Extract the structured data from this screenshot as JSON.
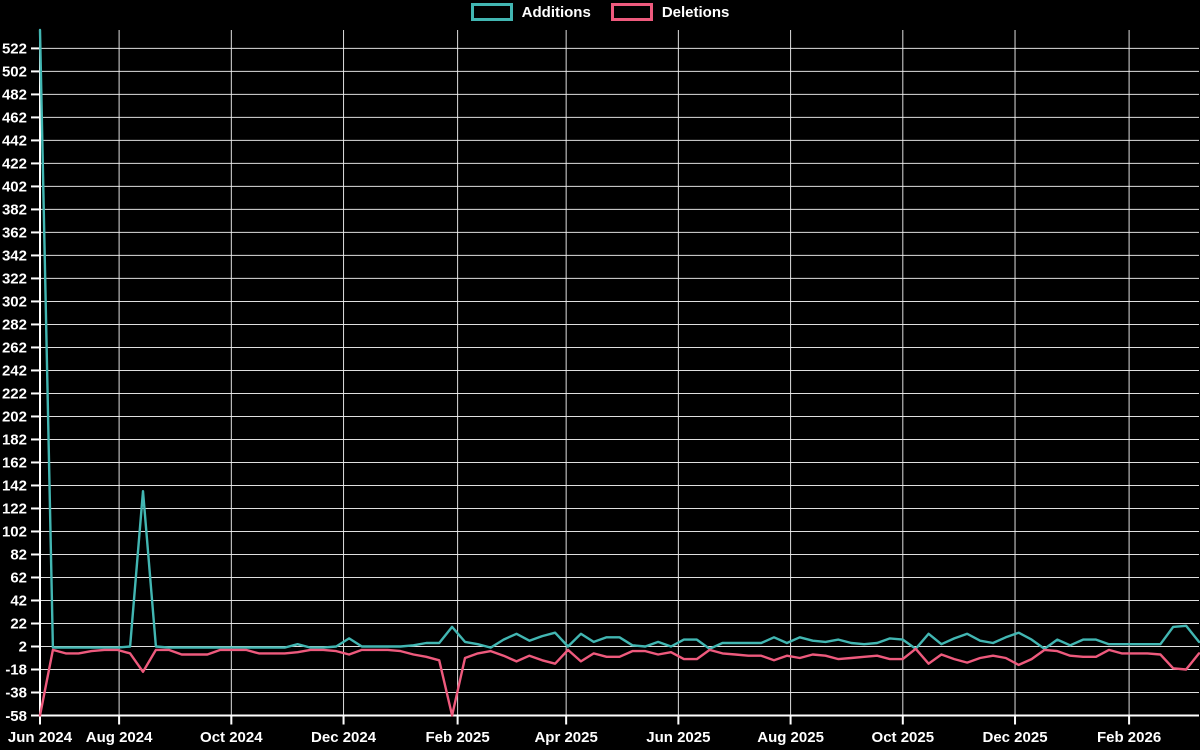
{
  "background_color": "#000000",
  "grid_color": "#f2f2f2",
  "axis_color": "#ffffff",
  "label_color": "#ffffff",
  "legend": {
    "additions_label": "Additions",
    "deletions_label": "Deletions"
  },
  "chart_data": {
    "type": "line",
    "title": "",
    "xlabel": "",
    "ylabel": "",
    "x_unit": "week",
    "grid": true,
    "legend_position": "top",
    "ylim": [
      -58,
      538
    ],
    "y_ticks": [
      522,
      502,
      482,
      462,
      442,
      422,
      402,
      382,
      362,
      342,
      322,
      302,
      282,
      262,
      242,
      222,
      202,
      182,
      162,
      142,
      122,
      102,
      82,
      62,
      42,
      22,
      2,
      -18,
      -38,
      -58
    ],
    "x_ticks": [
      {
        "label": "Jun 2024",
        "day": 0
      },
      {
        "label": "Aug 2024",
        "day": 43
      },
      {
        "label": "Oct 2024",
        "day": 104
      },
      {
        "label": "Dec 2024",
        "day": 165
      },
      {
        "label": "Feb 2025",
        "day": 227
      },
      {
        "label": "Apr 2025",
        "day": 286
      },
      {
        "label": "Jun 2025",
        "day": 347
      },
      {
        "label": "Aug 2025",
        "day": 408
      },
      {
        "label": "Oct 2025",
        "day": 469
      },
      {
        "label": "Dec 2025",
        "day": 530
      },
      {
        "label": "Feb 2026",
        "day": 592
      }
    ],
    "series": [
      {
        "name": "Additions",
        "color": "#42b6b2",
        "values": [
          538,
          1,
          1,
          1,
          1,
          1,
          1,
          2,
          137,
          2,
          1,
          1,
          1,
          1,
          1,
          1,
          1,
          1,
          1,
          1,
          4,
          1,
          1,
          2,
          9,
          2,
          2,
          2,
          2,
          3,
          5,
          5,
          19,
          6,
          4,
          1,
          8,
          13,
          7,
          11,
          14,
          2,
          13,
          6,
          10,
          10,
          3,
          2,
          6,
          2,
          8,
          8,
          0,
          5,
          5,
          5,
          5,
          10,
          5,
          10,
          7,
          6,
          8,
          5,
          4,
          5,
          9,
          8,
          0,
          13,
          4,
          9,
          13,
          7,
          5,
          10,
          14,
          8,
          0,
          8,
          3,
          8,
          8,
          4,
          4,
          4,
          4,
          4,
          19,
          20,
          6
        ]
      },
      {
        "name": "Deletions",
        "color": "#ee5a7d",
        "values": [
          -58,
          -1,
          -4,
          -4,
          -2,
          -1,
          -1,
          -4,
          -20,
          -1,
          -1,
          -5,
          -5,
          -5,
          -1,
          -1,
          -1,
          -4,
          -4,
          -4,
          -3,
          -1,
          -1,
          -2,
          -5,
          -1,
          -1,
          -1,
          -2,
          -5,
          -7,
          -10,
          -58,
          -8,
          -4,
          -2,
          -6,
          -11,
          -6,
          -10,
          -13,
          -1,
          -11,
          -4,
          -7,
          -7,
          -2,
          -2,
          -5,
          -3,
          -9,
          -9,
          -1,
          -4,
          -5,
          -6,
          -6,
          -10,
          -6,
          -8,
          -5,
          -6,
          -9,
          -8,
          -7,
          -6,
          -9,
          -9,
          0,
          -13,
          -5,
          -9,
          -12,
          -8,
          -6,
          -8,
          -14,
          -9,
          -1,
          -2,
          -6,
          -7,
          -7,
          -1,
          -4,
          -4,
          -4,
          -5,
          -17,
          -18,
          -4
        ]
      }
    ]
  }
}
